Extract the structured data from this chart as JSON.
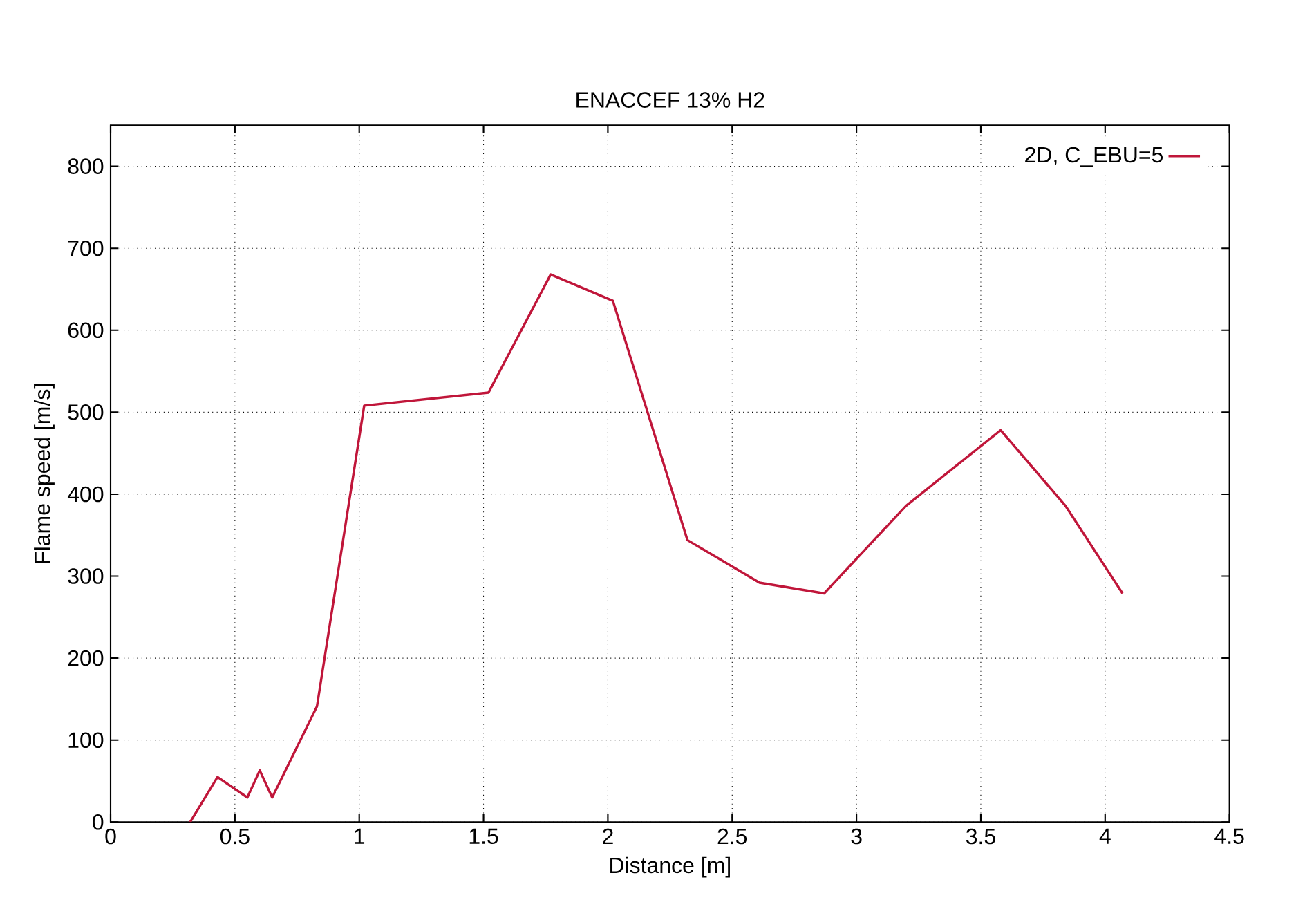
{
  "chart_data": {
    "type": "line",
    "title": "ENACCEF 13% H2",
    "xlabel": "Distance [m]",
    "ylabel": "Flame speed [m/s]",
    "x": [
      0.32,
      0.43,
      0.55,
      0.6,
      0.65,
      0.83,
      1.02,
      1.52,
      1.77,
      2.02,
      2.32,
      2.61,
      2.87,
      3.2,
      3.58,
      3.84,
      4.07
    ],
    "series": [
      {
        "name": "2D, C_EBU=5",
        "color": "#c0163a",
        "values": [
          0,
          55,
          30,
          63,
          30,
          141,
          508,
          524,
          668,
          636,
          344,
          292,
          279,
          386,
          478,
          386,
          279
        ]
      }
    ],
    "xlim": [
      0,
      4.5
    ],
    "ylim": [
      0,
      850
    ],
    "xticks": [
      0,
      0.5,
      1,
      1.5,
      2,
      2.5,
      3,
      3.5,
      4,
      4.5
    ],
    "yticks": [
      0,
      100,
      200,
      300,
      400,
      500,
      600,
      700,
      800
    ],
    "grid": true,
    "legend": "top right",
    "marker": "none",
    "line_style": "solid"
  }
}
